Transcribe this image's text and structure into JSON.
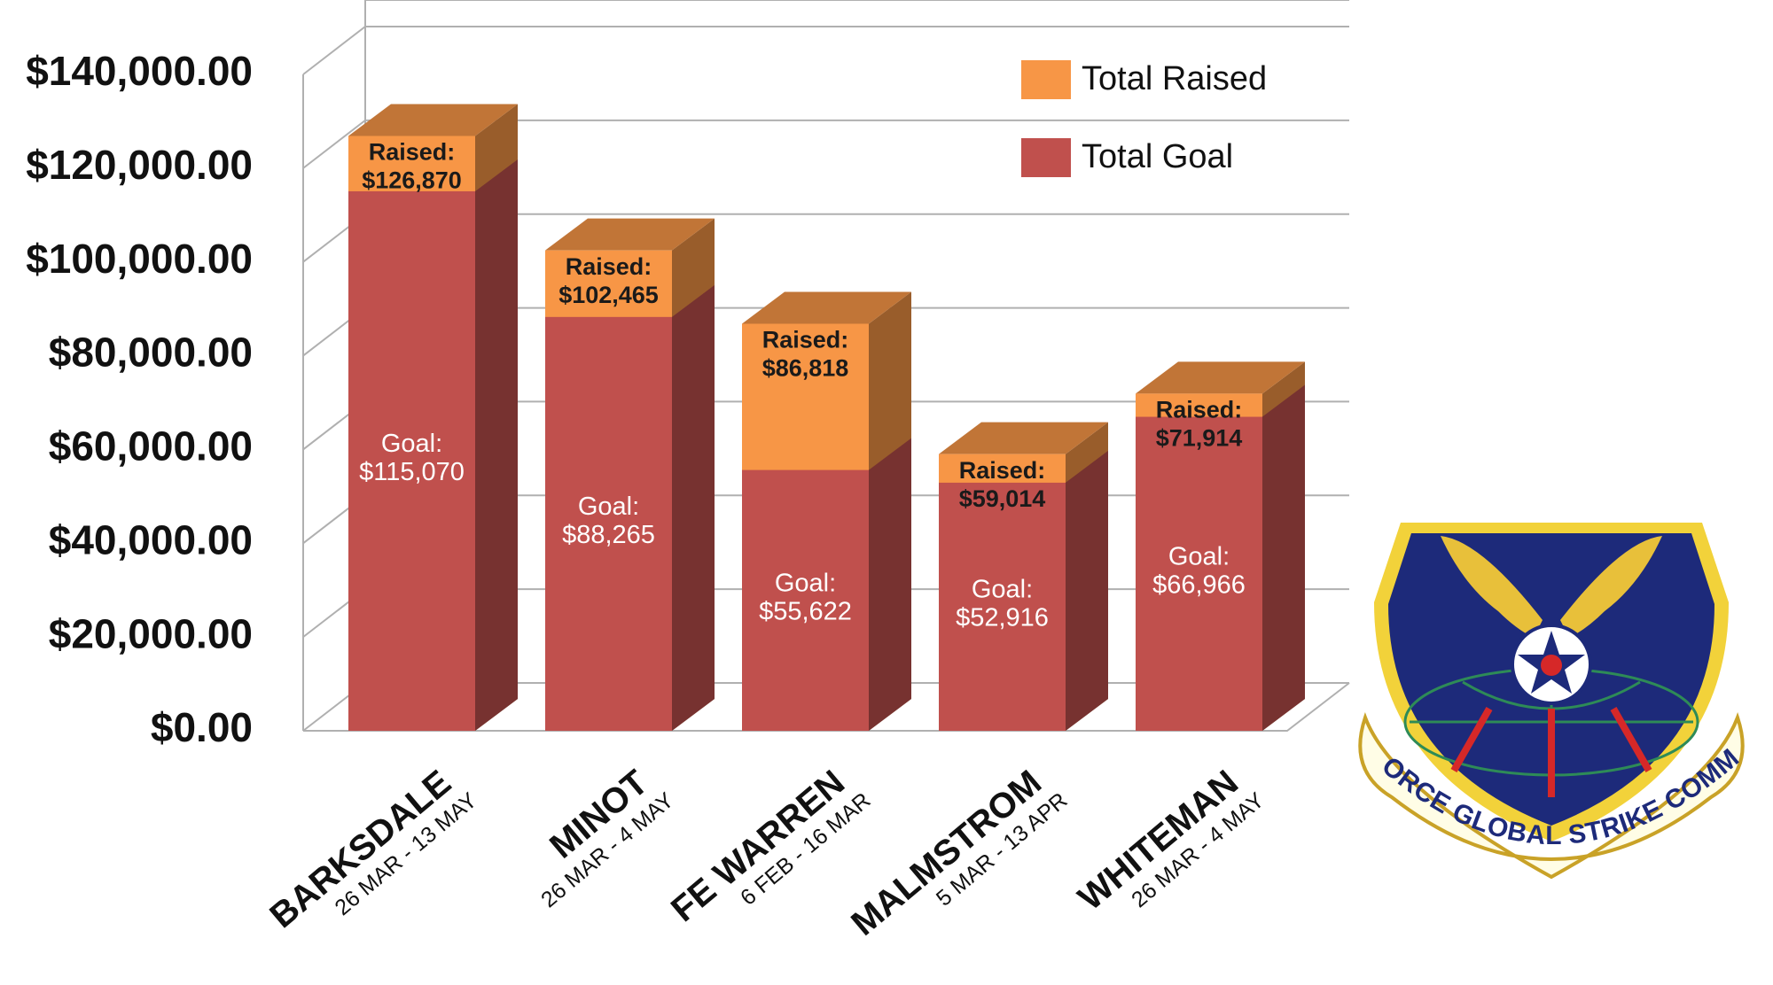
{
  "chart_data": {
    "type": "bar",
    "categories": [
      "BARKSDALE",
      "MINOT",
      "FE WARREN",
      "MALMSTROM",
      "WHITEMAN"
    ],
    "date_ranges": [
      "26 MAR - 13 MAY",
      "26 MAR - 4 MAY",
      "6 FEB - 16 MAR",
      "5 MAR - 13 APR",
      "26 MAR - 4 MAY"
    ],
    "series": [
      {
        "name": "Total Raised",
        "color": "#f79646",
        "label_prefix": "Raised:",
        "values": [
          126870,
          102465,
          86818,
          59014,
          71914
        ],
        "value_labels": [
          "$126,870",
          "$102,465",
          "$86,818",
          "$59,014",
          "$71,914"
        ]
      },
      {
        "name": "Total Goal",
        "color": "#c0504d",
        "label_prefix": "Goal:",
        "values": [
          115070,
          88265,
          55622,
          52916,
          66966
        ],
        "value_labels": [
          "$115,070",
          "$88,265",
          "$55,622",
          "$52,916",
          "$66,966"
        ]
      }
    ],
    "ylim": [
      0,
      140000
    ],
    "yticks": [
      {
        "value": 0,
        "label": "$0.00"
      },
      {
        "value": 20000,
        "label": "$20,000.00"
      },
      {
        "value": 40000,
        "label": "$40,000.00"
      },
      {
        "value": 60000,
        "label": "$60,000.00"
      },
      {
        "value": 80000,
        "label": "$80,000.00"
      },
      {
        "value": 100000,
        "label": "$100,000.00"
      },
      {
        "value": 120000,
        "label": "$120,000.00"
      },
      {
        "value": 140000,
        "label": "$140,000.00"
      }
    ],
    "grid": true,
    "legend": "top-right"
  },
  "logo_text": "AIR FORCE GLOBAL STRIKE COMMAND"
}
